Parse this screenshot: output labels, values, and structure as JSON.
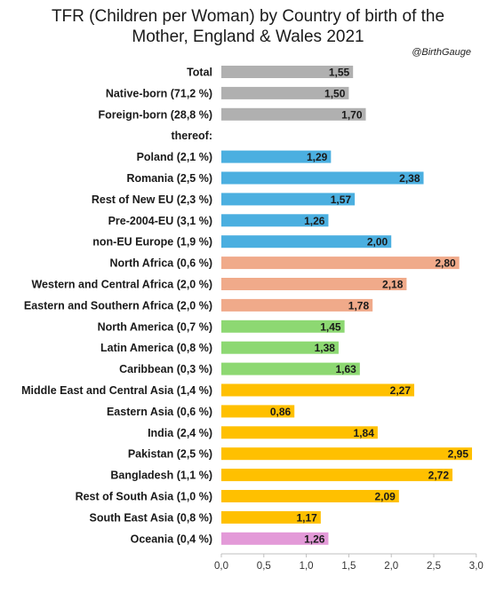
{
  "chart_data": {
    "type": "bar",
    "orientation": "horizontal",
    "title": [
      "TFR (Children per Woman) by Country of birth of the",
      "Mother, England & Wales 2021"
    ],
    "credit": "@BirthGauge",
    "xlim": [
      0,
      3.0
    ],
    "xticks": [
      "0,0",
      "0,5",
      "1,0",
      "1,5",
      "2,0",
      "2,5",
      "3,0"
    ],
    "grid": false,
    "legend": "none",
    "categories": [
      "Total",
      "Native-born (71,2 %)",
      "Foreign-born (28,8 %)",
      "thereof:",
      "Poland (2,1 %)",
      "Romania (2,5 %)",
      "Rest of New EU (2,3 %)",
      "Pre-2004-EU (3,1 %)",
      "non-EU Europe (1,9 %)",
      "North Africa (0,6 %)",
      "Western and Central Africa (2,0 %)",
      "Eastern and Southern Africa (2,0 %)",
      "North America (0,7 %)",
      "Latin America (0,8 %)",
      "Caribbean (0,3 %)",
      "Middle East and Central Asia (1,4 %)",
      "Eastern Asia (0,6 %)",
      "India (2,4 %)",
      "Pakistan (2,5 %)",
      "Bangladesh (1,1 %)",
      "Rest of South Asia (1,0 %)",
      "South East Asia (0,8 %)",
      "Oceania (0,4 %)"
    ],
    "values": [
      1.55,
      1.5,
      1.7,
      null,
      1.29,
      2.38,
      1.57,
      1.26,
      2.0,
      2.8,
      2.18,
      1.78,
      1.45,
      1.38,
      1.63,
      2.27,
      0.86,
      1.84,
      2.95,
      2.72,
      2.09,
      1.17,
      1.26
    ],
    "value_labels": [
      "1,55",
      "1,50",
      "1,70",
      "",
      "1,29",
      "2,38",
      "1,57",
      "1,26",
      "2,00",
      "2,80",
      "2,18",
      "1,78",
      "1,45",
      "1,38",
      "1,63",
      "2,27",
      "0,86",
      "1,84",
      "2,95",
      "2,72",
      "2,09",
      "1,17",
      "1,26"
    ],
    "bar_colors": [
      "#b0b0b0",
      "#b0b0b0",
      "#b0b0b0",
      "",
      "#4bafe0",
      "#4bafe0",
      "#4bafe0",
      "#4bafe0",
      "#4bafe0",
      "#f0aa8a",
      "#f0aa8a",
      "#f0aa8a",
      "#8dd872",
      "#8dd872",
      "#8dd872",
      "#ffc000",
      "#ffc000",
      "#ffc000",
      "#ffc000",
      "#ffc000",
      "#ffc000",
      "#ffc000",
      "#e39ad8"
    ]
  }
}
